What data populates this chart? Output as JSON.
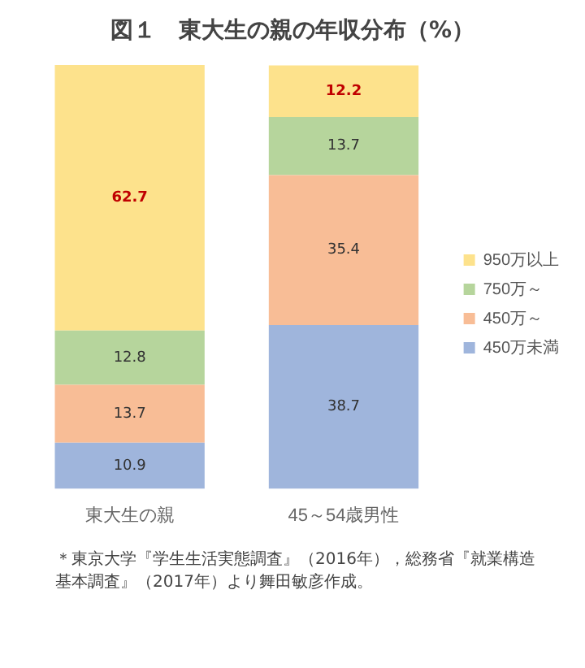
{
  "chart_data": {
    "type": "bar",
    "title": "図１　東大生の親の年収分布（%）",
    "categories": [
      "東大生の親",
      "45～54歳男性"
    ],
    "stacked": true,
    "data_labels": true,
    "legend": "right",
    "grid": false,
    "tick_labels": "x",
    "series": [
      {
        "name": "450万未満",
        "color": "#9fb5dc",
        "values": [
          10.9,
          38.7
        ]
      },
      {
        "name": "450万～",
        "color": "#f8bd96",
        "values": [
          13.7,
          35.4
        ]
      },
      {
        "name": "750万～",
        "color": "#b6d59c",
        "values": [
          12.8,
          13.7
        ]
      },
      {
        "name": "950万以上",
        "color": "#fde28c",
        "values": [
          62.7,
          12.2
        ]
      }
    ],
    "annotations": [
      "＊東京大学『学生生活実態調査』（2016年），総務省『就業構造基本調査』（2017年）より舞田敏彦作成。"
    ]
  }
}
